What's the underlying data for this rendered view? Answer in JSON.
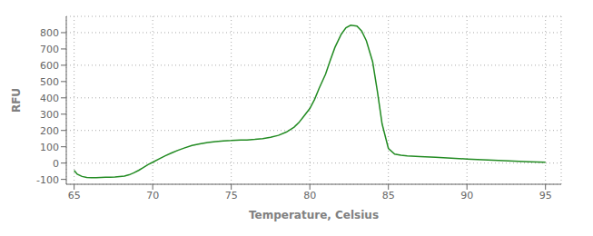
{
  "chart_data": {
    "type": "line",
    "xlabel": "Temperature, Celsius",
    "ylabel": "RFU",
    "color": "#228B22",
    "grid": true,
    "xlim": [
      64.5,
      96.0
    ],
    "ylim": [
      -130,
      900
    ],
    "xticks": [
      65,
      70,
      75,
      80,
      85,
      90,
      95
    ],
    "yticks": [
      -100,
      0,
      100,
      200,
      300,
      400,
      500,
      600,
      700,
      800
    ],
    "x": [
      65.0,
      65.2,
      65.5,
      65.8,
      66.1,
      66.4,
      66.7,
      67.0,
      67.3,
      67.6,
      67.9,
      68.2,
      68.5,
      68.8,
      69.1,
      69.4,
      69.7,
      70.0,
      70.4,
      70.8,
      71.2,
      71.6,
      72.0,
      72.5,
      73.0,
      73.5,
      74.0,
      74.5,
      75.0,
      75.3,
      75.6,
      76.0,
      76.5,
      77.0,
      77.5,
      78.0,
      78.5,
      79.0,
      79.3,
      79.6,
      80.0,
      80.3,
      80.6,
      81.0,
      81.3,
      81.6,
      82.0,
      82.3,
      82.6,
      83.0,
      83.3,
      83.6,
      84.0,
      84.3,
      84.6,
      85.0,
      85.4,
      85.8,
      86.2,
      87.0,
      88.0,
      89.0,
      90.0,
      91.0,
      92.0,
      93.0,
      94.0,
      95.0
    ],
    "values": [
      -45,
      -68,
      -82,
      -88,
      -90,
      -89,
      -88,
      -87,
      -87,
      -86,
      -83,
      -80,
      -72,
      -60,
      -45,
      -28,
      -10,
      5,
      25,
      45,
      62,
      78,
      92,
      108,
      118,
      126,
      132,
      136,
      138,
      140,
      141,
      142,
      145,
      150,
      158,
      170,
      190,
      220,
      248,
      285,
      335,
      390,
      460,
      545,
      630,
      710,
      790,
      830,
      845,
      840,
      810,
      750,
      620,
      440,
      240,
      90,
      55,
      48,
      44,
      40,
      36,
      30,
      25,
      20,
      16,
      12,
      8,
      5
    ]
  }
}
